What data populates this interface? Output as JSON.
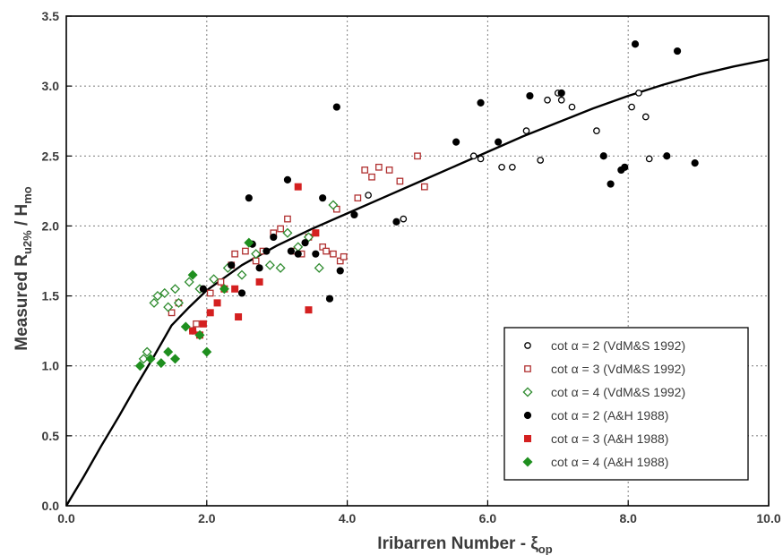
{
  "chart_data": {
    "type": "scatter",
    "xlabel": "Iribarren Number - ξ",
    "xlabel_sub": "op",
    "ylabel_main": "Measured R",
    "ylabel_sub": "u2%",
    "ylabel_tail": " / H",
    "ylabel_tail_sub": "mo",
    "xlim": [
      0,
      10
    ],
    "ylim": [
      0,
      3.5
    ],
    "xticks": [
      "0.0",
      "2.0",
      "4.0",
      "6.0",
      "8.0",
      "10.0"
    ],
    "xtick_values": [
      0,
      2,
      4,
      6,
      8,
      10
    ],
    "yticks": [
      "0.0",
      "0.5",
      "1.0",
      "1.5",
      "2.0",
      "2.5",
      "3.0",
      "3.5"
    ],
    "ytick_values": [
      0,
      0.5,
      1,
      1.5,
      2,
      2.5,
      3,
      3.5
    ],
    "grid": true,
    "legend_position": "bottom-right",
    "series": [
      {
        "name": "cot α = 2  (VdM&S 1992)",
        "marker": "circle-open",
        "color": "#000000",
        "x": [
          4.3,
          4.8,
          5.1,
          5.8,
          5.9,
          6.2,
          6.35,
          6.55,
          6.85,
          6.75,
          7.0,
          7.05,
          7.2,
          7.55,
          8.05,
          8.15,
          8.25,
          8.3
        ],
        "y": [
          2.22,
          2.05,
          2.28,
          2.5,
          2.48,
          2.42,
          2.42,
          2.68,
          2.9,
          2.47,
          2.95,
          2.9,
          2.85,
          2.68,
          2.85,
          2.95,
          2.78,
          2.48
        ]
      },
      {
        "name": "cot α = 3  (VdM&S 1992)",
        "marker": "square-open",
        "color": "#b03030",
        "x": [
          1.5,
          1.6,
          1.85,
          2.05,
          2.2,
          2.35,
          2.4,
          2.55,
          2.7,
          2.8,
          2.95,
          3.05,
          3.15,
          3.25,
          3.35,
          3.45,
          3.55,
          3.65,
          3.7,
          3.8,
          3.9,
          3.85,
          3.95,
          4.15,
          4.25,
          4.35,
          4.45,
          4.6,
          4.75,
          5.0,
          5.1
        ],
        "y": [
          1.38,
          1.45,
          1.3,
          1.52,
          1.6,
          1.72,
          1.8,
          1.82,
          1.75,
          1.82,
          1.95,
          1.98,
          2.05,
          1.82,
          1.8,
          1.92,
          1.95,
          1.85,
          1.82,
          1.8,
          1.75,
          2.12,
          1.78,
          2.2,
          2.4,
          2.35,
          2.42,
          2.4,
          2.32,
          2.5,
          2.28
        ]
      },
      {
        "name": "cot α = 4  (VdM&S 1992)",
        "marker": "diamond-open",
        "color": "#2e8b2e",
        "x": [
          1.1,
          1.15,
          1.25,
          1.3,
          1.4,
          1.45,
          1.55,
          1.6,
          1.75,
          1.9,
          2.1,
          2.3,
          2.5,
          2.7,
          2.9,
          3.05,
          3.15,
          3.3,
          3.45,
          3.6,
          3.8
        ],
        "y": [
          1.05,
          1.1,
          1.45,
          1.5,
          1.52,
          1.42,
          1.55,
          1.45,
          1.6,
          1.55,
          1.62,
          1.7,
          1.65,
          1.8,
          1.72,
          1.7,
          1.95,
          1.85,
          1.92,
          1.7,
          2.15
        ]
      },
      {
        "name": "cot α = 2  (A&H 1988)",
        "marker": "circle-filled",
        "color": "#000000",
        "x": [
          1.8,
          1.95,
          2.35,
          2.5,
          2.6,
          2.65,
          2.75,
          2.85,
          2.95,
          3.15,
          3.2,
          3.3,
          3.4,
          3.55,
          3.65,
          3.75,
          3.9,
          3.85,
          4.1,
          4.7,
          5.55,
          5.9,
          6.15,
          6.6,
          7.05,
          7.65,
          7.75,
          7.9,
          7.95,
          8.1,
          8.55,
          8.7,
          8.95
        ],
        "y": [
          1.25,
          1.55,
          1.72,
          1.52,
          2.2,
          1.87,
          1.7,
          1.82,
          1.92,
          2.33,
          1.82,
          1.8,
          1.88,
          1.8,
          2.2,
          1.48,
          1.68,
          2.85,
          2.08,
          2.03,
          2.6,
          2.88,
          2.6,
          2.93,
          2.95,
          2.5,
          2.3,
          2.4,
          2.42,
          3.3,
          2.5,
          3.25,
          2.45
        ]
      },
      {
        "name": "cot α = 3  (A&H 1988)",
        "marker": "square-filled",
        "color": "#d42020",
        "x": [
          1.8,
          1.9,
          1.95,
          2.05,
          2.15,
          2.25,
          2.4,
          2.45,
          2.75,
          3.3,
          3.45,
          3.55
        ],
        "y": [
          1.25,
          1.22,
          1.3,
          1.38,
          1.45,
          1.55,
          1.55,
          1.35,
          1.6,
          2.28,
          1.4,
          1.95
        ]
      },
      {
        "name": "cot α = 4  (A&H 1988)",
        "marker": "diamond-filled",
        "color": "#1f8f1f",
        "x": [
          1.05,
          1.2,
          1.35,
          1.45,
          1.55,
          1.7,
          1.8,
          1.9,
          2.0,
          2.25,
          2.6
        ],
        "y": [
          1.0,
          1.05,
          1.02,
          1.1,
          1.05,
          1.28,
          1.65,
          1.22,
          1.1,
          1.55,
          1.88
        ]
      }
    ],
    "fit_curve": {
      "x": [
        0,
        0.25,
        0.5,
        0.75,
        1.0,
        1.25,
        1.5,
        1.75,
        2.0,
        2.5,
        3.0,
        3.5,
        4.0,
        4.5,
        5.0,
        5.5,
        6.0,
        6.5,
        7.0,
        7.5,
        8.0,
        8.5,
        9.0,
        9.5,
        10.0
      ],
      "y": [
        0,
        0.21,
        0.43,
        0.64,
        0.86,
        1.07,
        1.29,
        1.42,
        1.54,
        1.72,
        1.86,
        1.98,
        2.09,
        2.2,
        2.31,
        2.42,
        2.53,
        2.64,
        2.74,
        2.84,
        2.93,
        3.01,
        3.08,
        3.14,
        3.19
      ]
    },
    "axis_color": "#000000",
    "grid_color": "#8a8a8a",
    "text_color": "#3b3b3b"
  }
}
